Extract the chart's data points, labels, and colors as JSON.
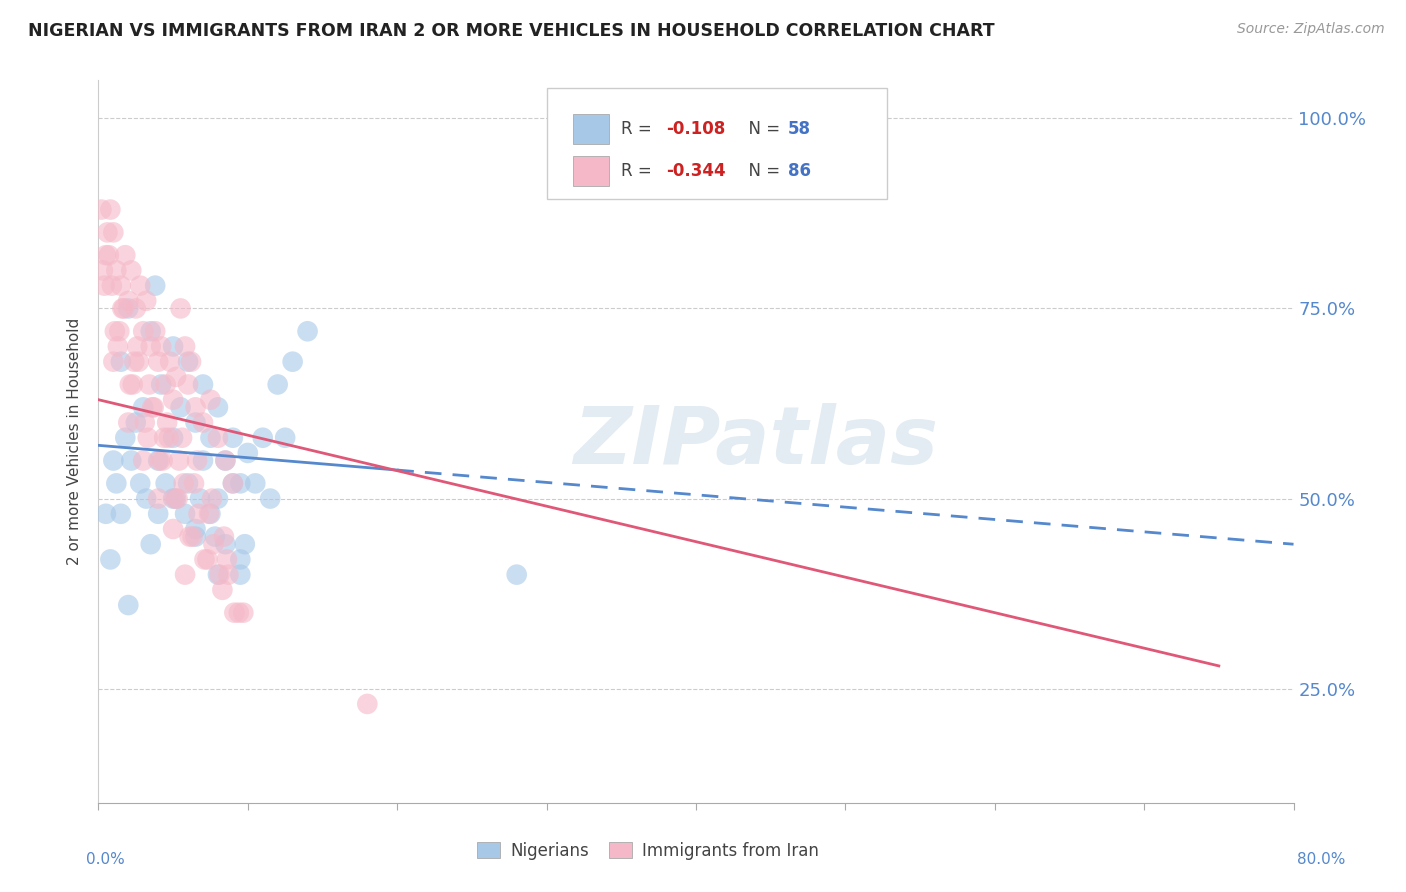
{
  "title": "NIGERIAN VS IMMIGRANTS FROM IRAN 2 OR MORE VEHICLES IN HOUSEHOLD CORRELATION CHART",
  "source": "Source: ZipAtlas.com",
  "ylabel": "2 or more Vehicles in Household",
  "legend_blue_r": "-0.108",
  "legend_blue_n": "58",
  "legend_pink_r": "-0.344",
  "legend_pink_n": "86",
  "legend_label_blue": "Nigerians",
  "legend_label_pink": "Immigrants from Iran",
  "blue_scatter_color": "#a8c8e8",
  "pink_scatter_color": "#f5b8c8",
  "blue_line_color": "#5588cc",
  "pink_line_color": "#e05878",
  "right_tick_color": "#5588cc",
  "watermark": "ZIPatlas",
  "background_color": "#ffffff",
  "xlim": [
    0,
    80
  ],
  "ylim": [
    10,
    105
  ],
  "y_ticks": [
    25,
    50,
    75,
    100
  ],
  "blue_line_x0": 0,
  "blue_line_y0": 57,
  "blue_line_x1": 80,
  "blue_line_y1": 44,
  "pink_line_x0": 0,
  "pink_line_y0": 63,
  "pink_line_x1": 75,
  "pink_line_y1": 28,
  "blue_scatter_x": [
    1.5,
    2.0,
    3.5,
    3.8,
    4.2,
    5.0,
    5.5,
    6.0,
    6.5,
    7.0,
    7.5,
    8.0,
    8.5,
    9.0,
    9.5,
    10.0,
    11.0,
    12.0,
    13.0,
    14.0,
    1.0,
    1.8,
    2.5,
    3.0,
    4.0,
    5.0,
    6.0,
    7.0,
    8.0,
    9.0,
    0.5,
    1.2,
    2.2,
    3.2,
    4.5,
    5.8,
    6.8,
    7.8,
    9.8,
    10.5,
    0.8,
    1.5,
    2.8,
    4.0,
    5.2,
    6.5,
    7.5,
    8.5,
    9.5,
    11.5,
    2.0,
    3.5,
    5.0,
    6.5,
    8.0,
    9.5,
    28.0,
    12.5
  ],
  "blue_scatter_y": [
    68,
    75,
    72,
    78,
    65,
    70,
    62,
    68,
    60,
    65,
    58,
    62,
    55,
    58,
    52,
    56,
    58,
    65,
    68,
    72,
    55,
    58,
    60,
    62,
    55,
    58,
    52,
    55,
    50,
    52,
    48,
    52,
    55,
    50,
    52,
    48,
    50,
    45,
    44,
    52,
    42,
    48,
    52,
    48,
    50,
    45,
    48,
    44,
    42,
    50,
    36,
    44,
    50,
    46,
    40,
    40,
    40,
    58
  ],
  "pink_scatter_x": [
    0.5,
    0.8,
    1.0,
    1.2,
    1.5,
    1.8,
    2.0,
    2.2,
    2.5,
    2.8,
    3.0,
    3.2,
    3.5,
    3.8,
    4.0,
    4.2,
    4.5,
    4.8,
    5.0,
    5.2,
    5.5,
    5.8,
    6.0,
    6.2,
    6.5,
    7.0,
    7.5,
    8.0,
    8.5,
    9.0,
    0.3,
    0.6,
    0.9,
    1.4,
    1.6,
    2.4,
    2.6,
    3.4,
    3.6,
    4.4,
    4.6,
    5.4,
    5.6,
    6.4,
    6.6,
    7.4,
    7.6,
    8.4,
    8.6,
    9.4,
    0.4,
    1.1,
    2.1,
    3.1,
    4.1,
    5.1,
    6.1,
    7.1,
    8.1,
    9.1,
    0.7,
    1.3,
    2.3,
    3.3,
    4.3,
    5.3,
    6.3,
    7.3,
    8.3,
    18.0,
    0.2,
    1.7,
    2.7,
    3.7,
    4.7,
    5.7,
    6.7,
    7.7,
    8.7,
    9.7,
    1.0,
    2.0,
    3.0,
    4.0,
    5.0,
    5.8
  ],
  "pink_scatter_y": [
    82,
    88,
    85,
    80,
    78,
    82,
    76,
    80,
    75,
    78,
    72,
    76,
    70,
    72,
    68,
    70,
    65,
    68,
    63,
    66,
    75,
    70,
    65,
    68,
    62,
    60,
    63,
    58,
    55,
    52,
    80,
    85,
    78,
    72,
    75,
    68,
    70,
    65,
    62,
    58,
    60,
    55,
    58,
    52,
    55,
    48,
    50,
    45,
    42,
    35,
    78,
    72,
    65,
    60,
    55,
    50,
    45,
    42,
    40,
    35,
    82,
    70,
    65,
    58,
    55,
    50,
    45,
    42,
    38,
    23,
    88,
    75,
    68,
    62,
    58,
    52,
    48,
    44,
    40,
    35,
    68,
    60,
    55,
    50,
    46,
    40
  ]
}
